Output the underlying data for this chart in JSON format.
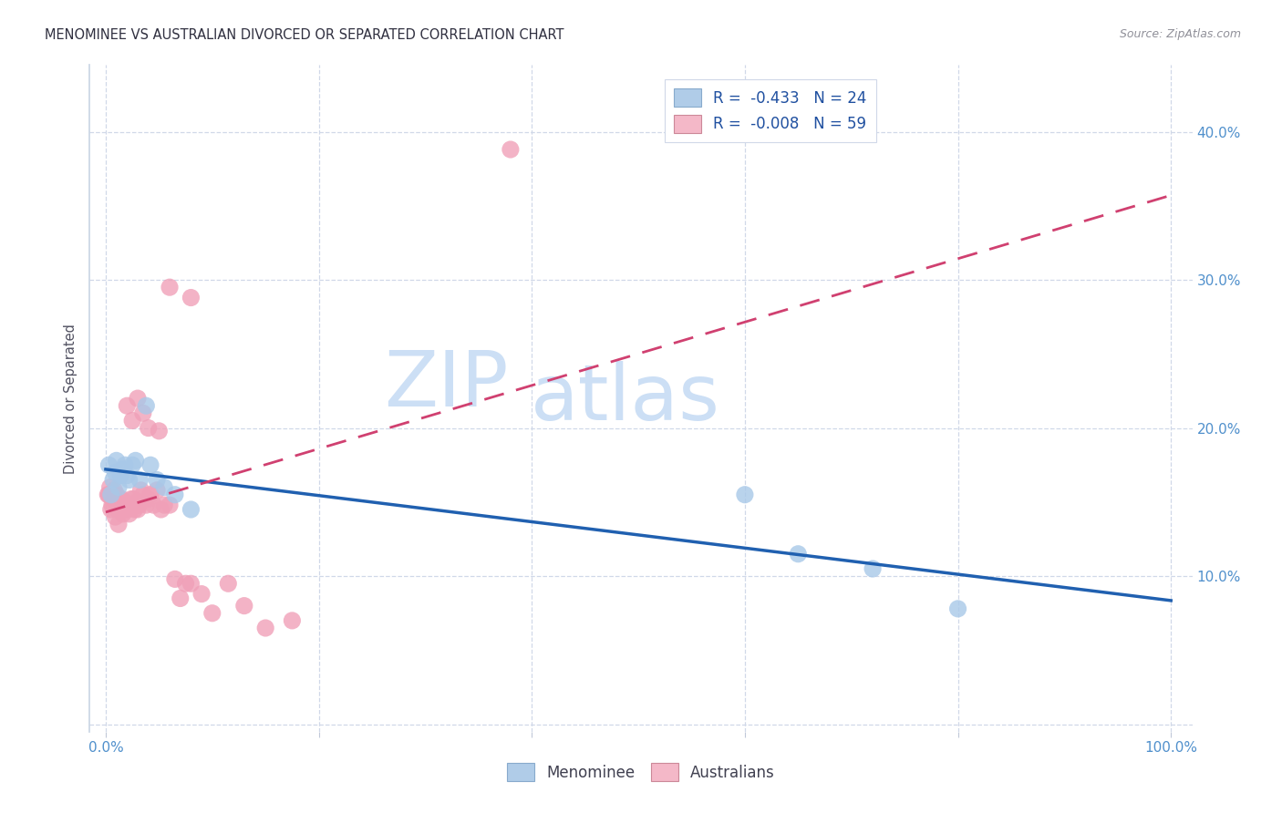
{
  "title": "MENOMINEE VS AUSTRALIAN DIVORCED OR SEPARATED CORRELATION CHART",
  "source": "Source: ZipAtlas.com",
  "ylabel": "Divorced or Separated",
  "xlim": [
    -0.015,
    1.02
  ],
  "ylim": [
    -0.005,
    0.445
  ],
  "yticks": [
    0.0,
    0.1,
    0.2,
    0.3,
    0.4
  ],
  "ytick_labels_right": [
    "",
    "10.0%",
    "20.0%",
    "30.0%",
    "40.0%"
  ],
  "xtick_vals": [
    0.0,
    0.2,
    0.4,
    0.6,
    0.8,
    1.0
  ],
  "xtick_labels": [
    "0.0%",
    "",
    "",
    "",
    "",
    "100.0%"
  ],
  "menominee_R": "-0.433",
  "menominee_N": "24",
  "australian_R": "-0.008",
  "australian_N": "59",
  "menominee_color": "#a8c8e8",
  "australian_color": "#f0a0b8",
  "menominee_line_color": "#2060b0",
  "australian_line_color": "#d04070",
  "menominee_x": [
    0.003,
    0.005,
    0.007,
    0.009,
    0.01,
    0.012,
    0.014,
    0.016,
    0.018,
    0.02,
    0.022,
    0.025,
    0.028,
    0.032,
    0.038,
    0.042,
    0.048,
    0.055,
    0.065,
    0.08,
    0.6,
    0.65,
    0.72,
    0.8
  ],
  "menominee_y": [
    0.175,
    0.155,
    0.165,
    0.17,
    0.178,
    0.16,
    0.168,
    0.172,
    0.175,
    0.168,
    0.165,
    0.175,
    0.178,
    0.165,
    0.215,
    0.175,
    0.165,
    0.16,
    0.155,
    0.145,
    0.155,
    0.115,
    0.105,
    0.078
  ],
  "australian_x": [
    0.002,
    0.003,
    0.004,
    0.005,
    0.006,
    0.007,
    0.008,
    0.009,
    0.01,
    0.011,
    0.012,
    0.013,
    0.014,
    0.015,
    0.016,
    0.017,
    0.018,
    0.019,
    0.02,
    0.021,
    0.022,
    0.023,
    0.024,
    0.025,
    0.026,
    0.027,
    0.028,
    0.029,
    0.03,
    0.031,
    0.033,
    0.035,
    0.038,
    0.04,
    0.042,
    0.045,
    0.048,
    0.052,
    0.055,
    0.06,
    0.065,
    0.07,
    0.075,
    0.08,
    0.09,
    0.1,
    0.115,
    0.13,
    0.15,
    0.175,
    0.02,
    0.025,
    0.03,
    0.035,
    0.04,
    0.05,
    0.06,
    0.08,
    0.38
  ],
  "australian_y": [
    0.155,
    0.155,
    0.16,
    0.145,
    0.148,
    0.152,
    0.158,
    0.14,
    0.155,
    0.145,
    0.135,
    0.145,
    0.148,
    0.152,
    0.142,
    0.148,
    0.15,
    0.145,
    0.145,
    0.148,
    0.142,
    0.148,
    0.152,
    0.148,
    0.152,
    0.145,
    0.148,
    0.15,
    0.145,
    0.148,
    0.158,
    0.155,
    0.148,
    0.152,
    0.155,
    0.148,
    0.158,
    0.145,
    0.148,
    0.148,
    0.098,
    0.085,
    0.095,
    0.095,
    0.088,
    0.075,
    0.095,
    0.08,
    0.065,
    0.07,
    0.215,
    0.205,
    0.22,
    0.21,
    0.2,
    0.198,
    0.295,
    0.288,
    0.388
  ],
  "watermark_zip": "ZIP",
  "watermark_atlas": "atlas",
  "watermark_color": "#ccdff5",
  "legend_box_color_menominee": "#b0cce8",
  "legend_box_color_australian": "#f4b8c8",
  "legend_border": "#d0d8e8",
  "legend_text_r_color": "#2050a0",
  "legend_text_n_color": "#1040c0",
  "bottom_legend_menominee": "Menominee",
  "bottom_legend_australian": "Australians"
}
